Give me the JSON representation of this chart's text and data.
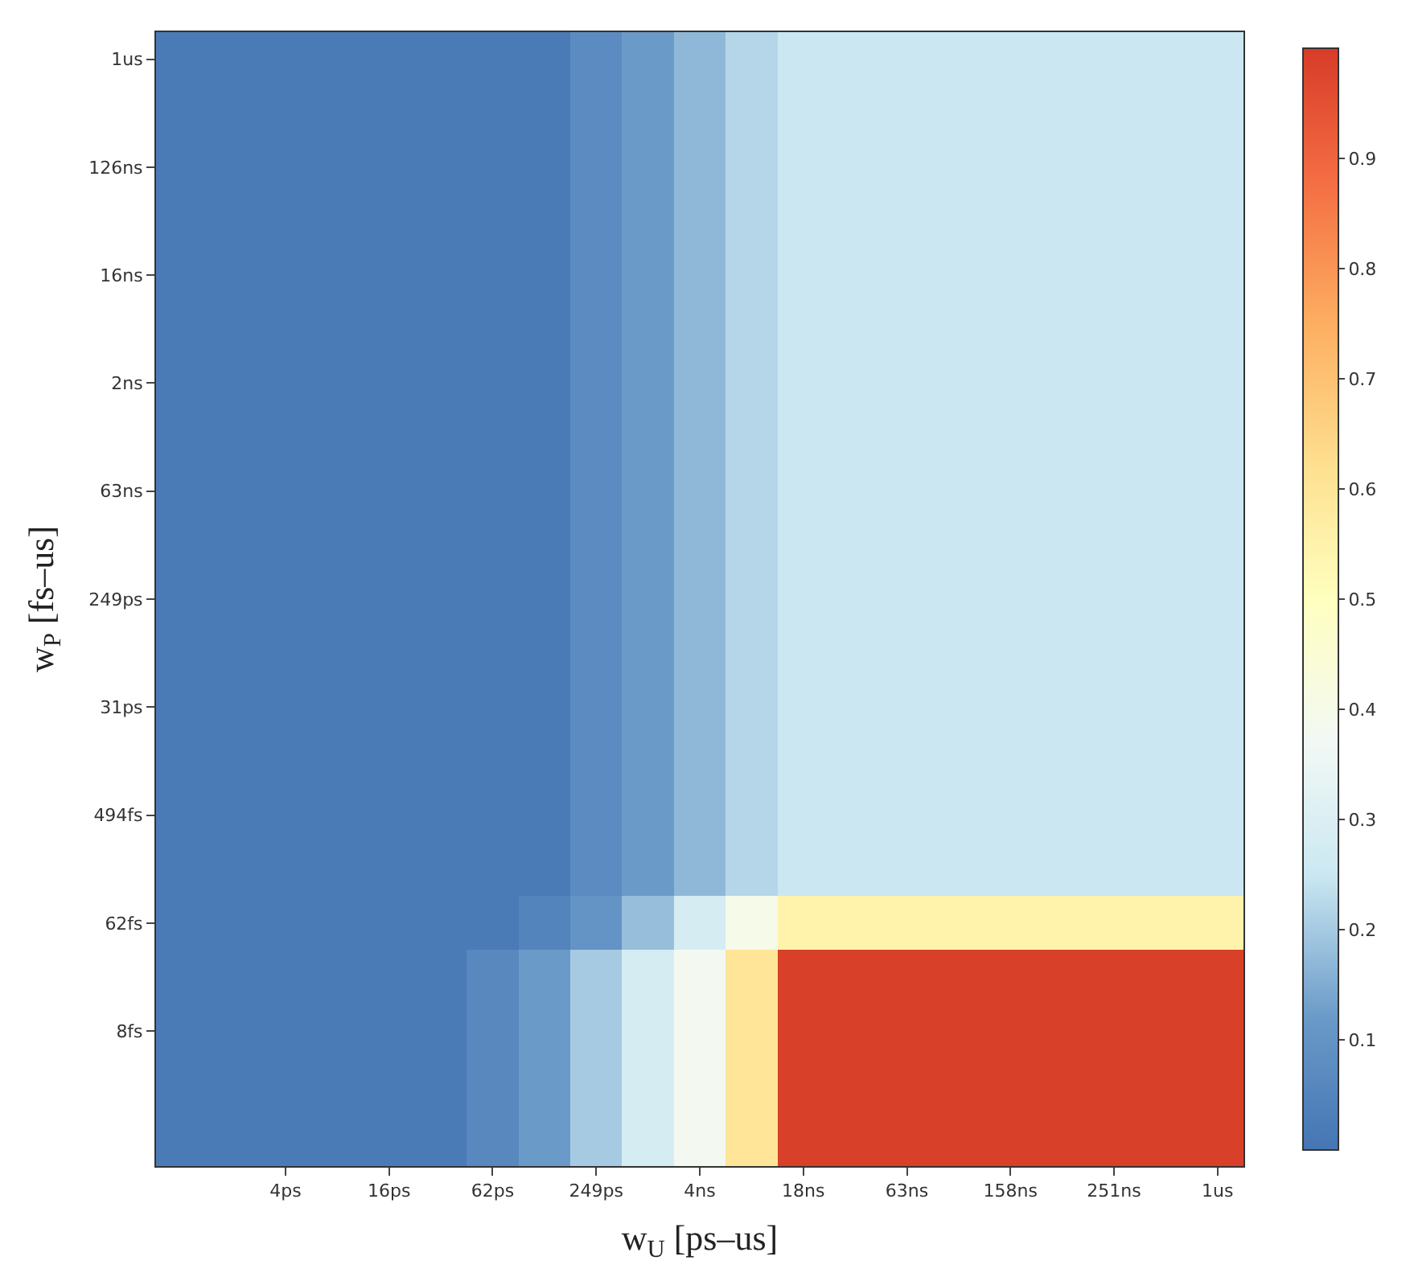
{
  "chart_data": {
    "type": "heatmap",
    "xlabel": "w$_{U}$ [ps–us]",
    "ylabel": "w$_{P}$ [fs–us]",
    "categories": [
      null,
      null,
      "4ps",
      null,
      "16ps",
      null,
      "62ps",
      null,
      "249ps",
      null,
      "4ns",
      null,
      "18ns",
      null,
      "63ns",
      null,
      "158ns",
      null,
      "251ns",
      null,
      "1us"
    ],
    "y_categories": [
      "1us",
      null,
      "126ns",
      null,
      "16ns",
      null,
      "2ns",
      null,
      "63ns",
      null,
      "249ps",
      null,
      "31ps",
      null,
      "494fs",
      null,
      "62fs",
      null,
      "8fs",
      null,
      null
    ],
    "cells": [
      [
        0.02,
        0.02,
        0.02,
        0.02,
        0.02,
        0.02,
        0.02,
        0.02,
        0.07,
        0.12,
        0.17,
        0.22,
        0.25,
        0.25,
        0.25,
        0.25,
        0.25,
        0.25,
        0.25,
        0.25,
        0.25
      ],
      [
        0.02,
        0.02,
        0.02,
        0.02,
        0.02,
        0.02,
        0.02,
        0.02,
        0.07,
        0.12,
        0.17,
        0.22,
        0.25,
        0.25,
        0.25,
        0.25,
        0.25,
        0.25,
        0.25,
        0.25,
        0.25
      ],
      [
        0.02,
        0.02,
        0.02,
        0.02,
        0.02,
        0.02,
        0.02,
        0.02,
        0.07,
        0.12,
        0.17,
        0.22,
        0.25,
        0.25,
        0.25,
        0.25,
        0.25,
        0.25,
        0.25,
        0.25,
        0.25
      ],
      [
        0.02,
        0.02,
        0.02,
        0.02,
        0.02,
        0.02,
        0.02,
        0.02,
        0.07,
        0.12,
        0.17,
        0.22,
        0.25,
        0.25,
        0.25,
        0.25,
        0.25,
        0.25,
        0.25,
        0.25,
        0.25
      ],
      [
        0.02,
        0.02,
        0.02,
        0.02,
        0.02,
        0.02,
        0.02,
        0.02,
        0.07,
        0.12,
        0.17,
        0.22,
        0.25,
        0.25,
        0.25,
        0.25,
        0.25,
        0.25,
        0.25,
        0.25,
        0.25
      ],
      [
        0.02,
        0.02,
        0.02,
        0.02,
        0.02,
        0.02,
        0.02,
        0.02,
        0.07,
        0.12,
        0.17,
        0.22,
        0.25,
        0.25,
        0.25,
        0.25,
        0.25,
        0.25,
        0.25,
        0.25,
        0.25
      ],
      [
        0.02,
        0.02,
        0.02,
        0.02,
        0.02,
        0.02,
        0.02,
        0.02,
        0.07,
        0.12,
        0.17,
        0.22,
        0.25,
        0.25,
        0.25,
        0.25,
        0.25,
        0.25,
        0.25,
        0.25,
        0.25
      ],
      [
        0.02,
        0.02,
        0.02,
        0.02,
        0.02,
        0.02,
        0.02,
        0.02,
        0.07,
        0.12,
        0.17,
        0.22,
        0.25,
        0.25,
        0.25,
        0.25,
        0.25,
        0.25,
        0.25,
        0.25,
        0.25
      ],
      [
        0.02,
        0.02,
        0.02,
        0.02,
        0.02,
        0.02,
        0.02,
        0.02,
        0.07,
        0.12,
        0.17,
        0.22,
        0.25,
        0.25,
        0.25,
        0.25,
        0.25,
        0.25,
        0.25,
        0.25,
        0.25
      ],
      [
        0.02,
        0.02,
        0.02,
        0.02,
        0.02,
        0.02,
        0.02,
        0.02,
        0.07,
        0.12,
        0.17,
        0.22,
        0.25,
        0.25,
        0.25,
        0.25,
        0.25,
        0.25,
        0.25,
        0.25,
        0.25
      ],
      [
        0.02,
        0.02,
        0.02,
        0.02,
        0.02,
        0.02,
        0.02,
        0.02,
        0.07,
        0.12,
        0.17,
        0.22,
        0.25,
        0.25,
        0.25,
        0.25,
        0.25,
        0.25,
        0.25,
        0.25,
        0.25
      ],
      [
        0.02,
        0.02,
        0.02,
        0.02,
        0.02,
        0.02,
        0.02,
        0.02,
        0.07,
        0.12,
        0.17,
        0.22,
        0.25,
        0.25,
        0.25,
        0.25,
        0.25,
        0.25,
        0.25,
        0.25,
        0.25
      ],
      [
        0.02,
        0.02,
        0.02,
        0.02,
        0.02,
        0.02,
        0.02,
        0.02,
        0.07,
        0.12,
        0.17,
        0.22,
        0.25,
        0.25,
        0.25,
        0.25,
        0.25,
        0.25,
        0.25,
        0.25,
        0.25
      ],
      [
        0.02,
        0.02,
        0.02,
        0.02,
        0.02,
        0.02,
        0.02,
        0.02,
        0.07,
        0.12,
        0.17,
        0.22,
        0.25,
        0.25,
        0.25,
        0.25,
        0.25,
        0.25,
        0.25,
        0.25,
        0.25
      ],
      [
        0.02,
        0.02,
        0.02,
        0.02,
        0.02,
        0.02,
        0.02,
        0.02,
        0.07,
        0.12,
        0.17,
        0.22,
        0.25,
        0.25,
        0.25,
        0.25,
        0.25,
        0.25,
        0.25,
        0.25,
        0.25
      ],
      [
        0.02,
        0.02,
        0.02,
        0.02,
        0.02,
        0.02,
        0.02,
        0.02,
        0.07,
        0.12,
        0.17,
        0.22,
        0.25,
        0.25,
        0.25,
        0.25,
        0.25,
        0.25,
        0.25,
        0.25,
        0.25
      ],
      [
        0.02,
        0.02,
        0.02,
        0.02,
        0.02,
        0.02,
        0.02,
        0.05,
        0.1,
        0.18,
        0.28,
        0.4,
        0.55,
        0.55,
        0.55,
        0.55,
        0.55,
        0.55,
        0.55,
        0.55,
        0.55
      ],
      [
        0.02,
        0.02,
        0.02,
        0.02,
        0.02,
        0.02,
        0.06,
        0.12,
        0.2,
        0.28,
        0.38,
        0.6,
        0.99,
        0.99,
        0.99,
        0.99,
        0.99,
        0.99,
        0.99,
        0.99,
        0.99
      ],
      [
        0.02,
        0.02,
        0.02,
        0.02,
        0.02,
        0.02,
        0.06,
        0.12,
        0.2,
        0.28,
        0.38,
        0.6,
        0.99,
        0.99,
        0.99,
        0.99,
        0.99,
        0.99,
        0.99,
        0.99,
        0.99
      ],
      [
        0.02,
        0.02,
        0.02,
        0.02,
        0.02,
        0.02,
        0.06,
        0.12,
        0.2,
        0.28,
        0.38,
        0.6,
        0.99,
        0.99,
        0.99,
        0.99,
        0.99,
        0.99,
        0.99,
        0.99,
        0.99
      ],
      [
        0.02,
        0.02,
        0.02,
        0.02,
        0.02,
        0.02,
        0.06,
        0.12,
        0.2,
        0.28,
        0.38,
        0.6,
        0.99,
        0.99,
        0.99,
        0.99,
        0.99,
        0.99,
        0.99,
        0.99,
        0.99
      ]
    ],
    "clim": [
      0,
      1
    ],
    "cticks": [
      0.1,
      0.2,
      0.3,
      0.4,
      0.5,
      0.6,
      0.7,
      0.8,
      0.9
    ]
  }
}
